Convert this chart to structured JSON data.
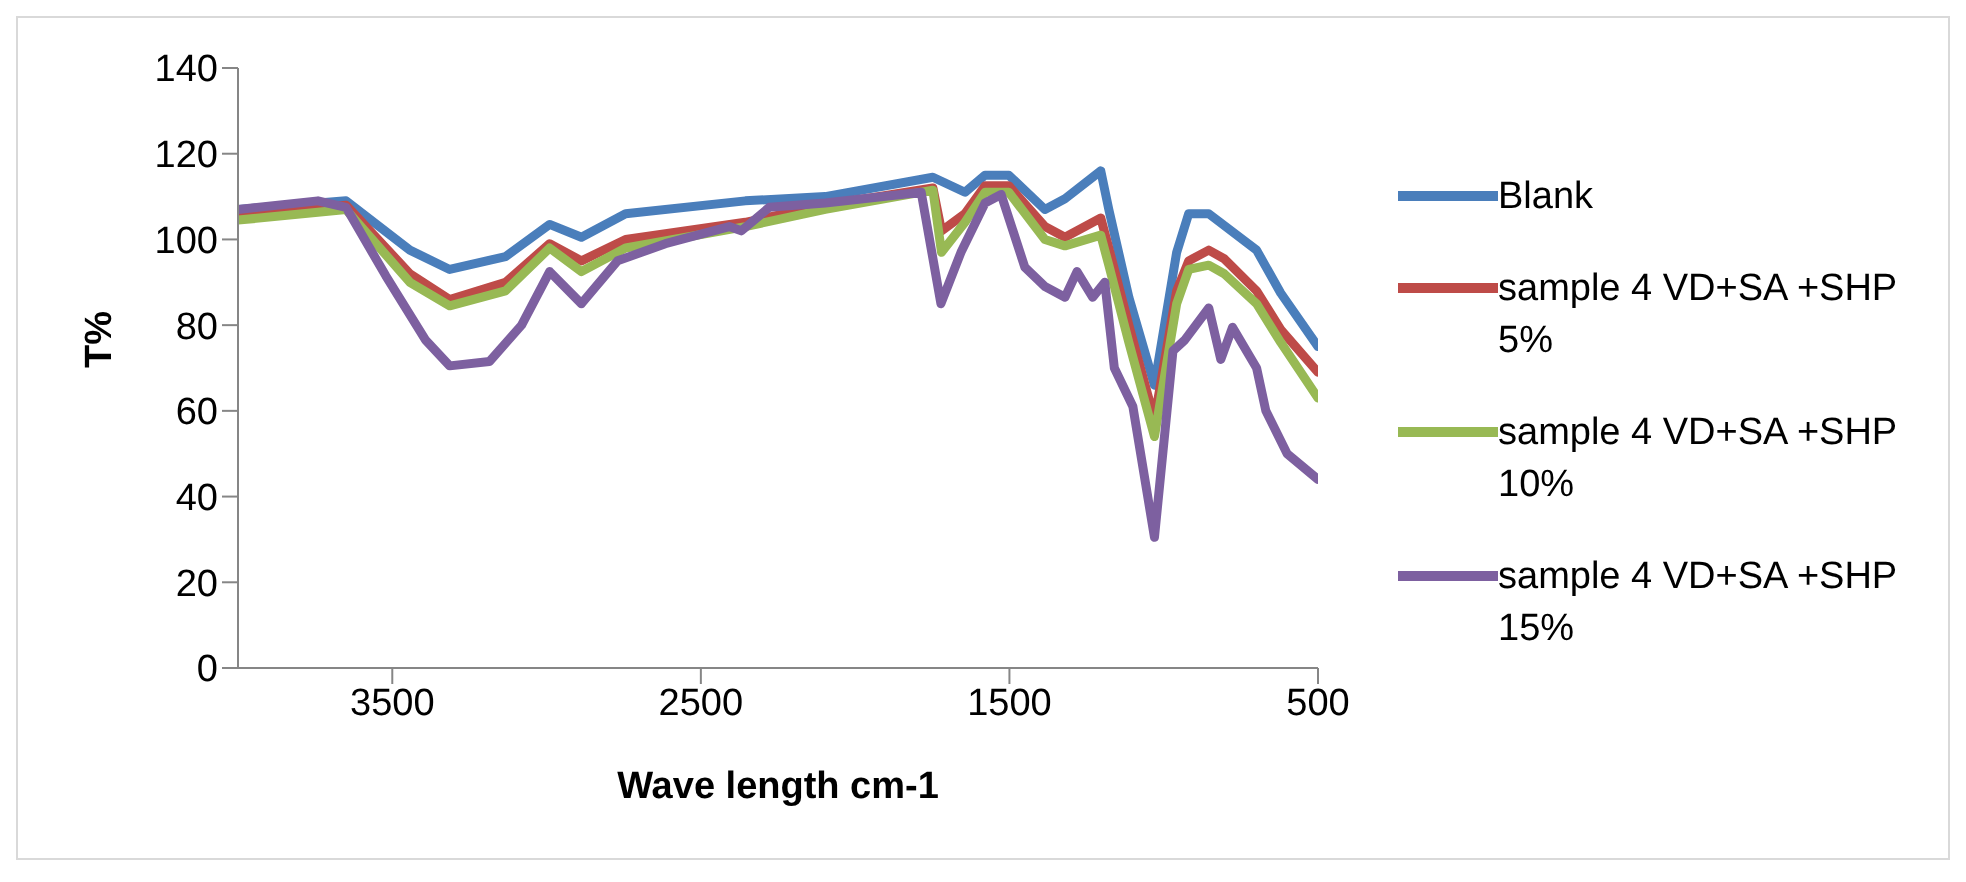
{
  "chart_data": {
    "type": "line",
    "xlabel": "Wave length cm-1",
    "ylabel": "T%",
    "xlim": [
      4000,
      500
    ],
    "xticks": [
      3500,
      2500,
      1500,
      500
    ],
    "ylim": [
      0,
      140
    ],
    "yticks": [
      0,
      20,
      40,
      60,
      80,
      100,
      120,
      140
    ],
    "grid": false,
    "legend": "right",
    "marker": "none",
    "line_style": "solid",
    "series": [
      {
        "name": "Blank",
        "color": "#4a7ebb",
        "x": [
          4000,
          3650,
          3443,
          3314,
          3133,
          2990,
          2887,
          2744,
          2356,
          2097,
          1748,
          1644,
          1579,
          1502,
          1385,
          1320,
          1204,
          1178,
          1113,
          1030,
          958,
          919,
          854,
          699,
          621,
          500
        ],
        "values": [
          107,
          109,
          97.5,
          93,
          96,
          103.5,
          100.5,
          106,
          109,
          110,
          114.5,
          111,
          115,
          115,
          107,
          109.5,
          116,
          107,
          86.5,
          66,
          97,
          106,
          106,
          97.5,
          87.5,
          75
        ]
      },
      {
        "name": "sample 4 VD+SA +SHP 5%",
        "color": "#be4b48",
        "x": [
          4000,
          3650,
          3443,
          3314,
          3133,
          2990,
          2887,
          2744,
          2356,
          2097,
          1748,
          1720,
          1644,
          1579,
          1502,
          1385,
          1320,
          1204,
          1178,
          1113,
          1030,
          958,
          919,
          854,
          804,
          699,
          621,
          500
        ],
        "values": [
          105.5,
          108,
          92,
          86,
          90,
          99,
          95,
          100,
          104,
          108,
          112,
          102,
          106,
          112.5,
          112.5,
          103,
          100.5,
          105,
          98,
          80,
          58,
          88,
          95,
          97.5,
          95.5,
          88,
          79,
          69
        ]
      },
      {
        "name": "sample 4 VD+SA +SHP 10%",
        "color": "#98b954",
        "x": [
          4000,
          3650,
          3443,
          3314,
          3133,
          2990,
          2887,
          2744,
          2356,
          2097,
          1748,
          1720,
          1644,
          1579,
          1502,
          1385,
          1320,
          1204,
          1178,
          1113,
          1030,
          958,
          919,
          854,
          804,
          699,
          621,
          500
        ],
        "values": [
          104.5,
          107,
          90,
          84.5,
          88,
          98,
          92.5,
          98,
          103,
          107,
          111.5,
          97,
          104,
          111,
          111,
          100,
          98.5,
          101,
          94,
          76,
          54,
          85,
          93,
          94,
          92,
          85,
          76,
          63
        ]
      },
      {
        "name": "sample 4 VD+SA +SHP 15%",
        "color": "#7d60a0",
        "x": [
          4000,
          3741,
          3650,
          3521,
          3392,
          3314,
          3185,
          3081,
          2990,
          2887,
          2770,
          2615,
          2408,
          2369,
          2278,
          2097,
          1786,
          1722,
          1657,
          1579,
          1527,
          1450,
          1385,
          1320,
          1281,
          1230,
          1191,
          1160,
          1100,
          1030,
          970,
          932,
          854,
          815,
          777,
          699,
          669,
          600,
          500
        ],
        "values": [
          107,
          109,
          107.5,
          91.5,
          76.5,
          70.5,
          71.5,
          80,
          92.5,
          85,
          95,
          99,
          103,
          102,
          107.5,
          108.5,
          111,
          85,
          97,
          108.5,
          110.5,
          93.5,
          89,
          86.5,
          92.5,
          86.5,
          90,
          70,
          61,
          30.5,
          74,
          76.5,
          84,
          72,
          79.5,
          70,
          60,
          50,
          44
        ]
      }
    ]
  }
}
